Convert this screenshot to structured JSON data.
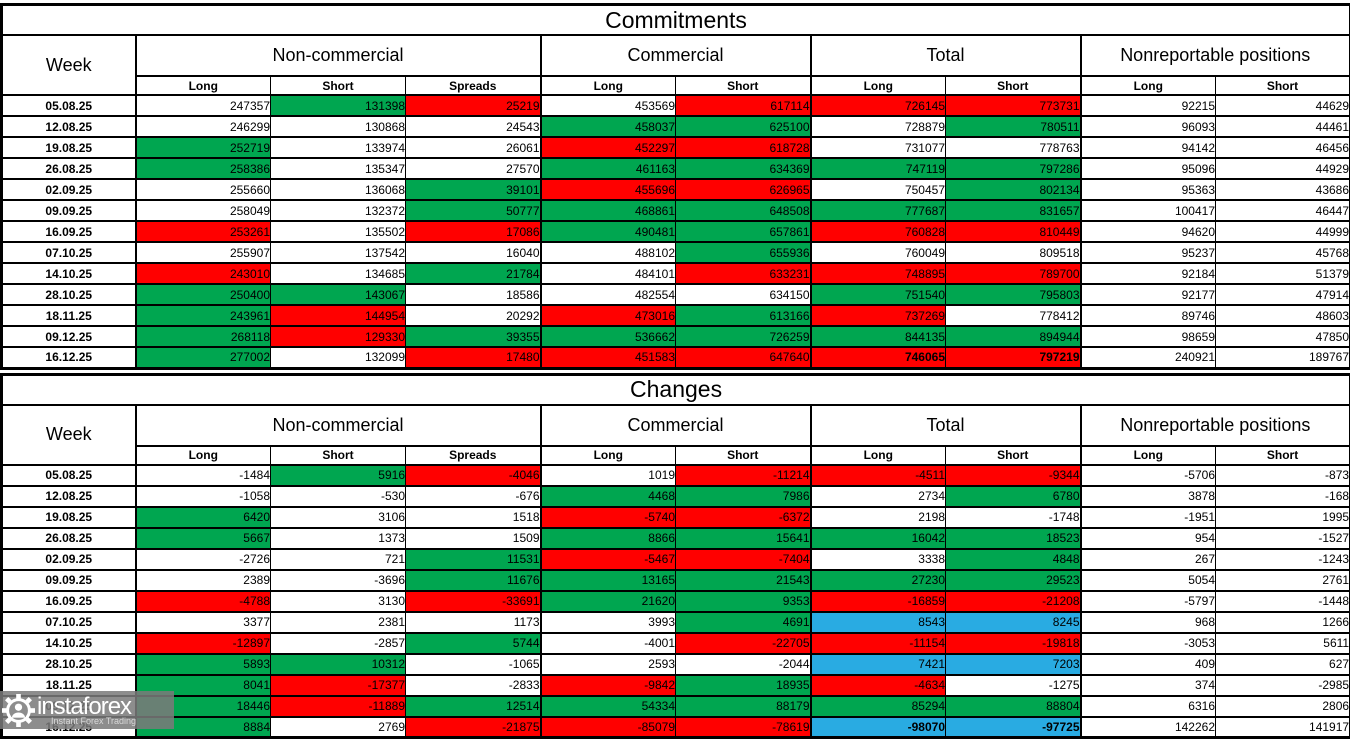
{
  "colors": {
    "increase_green": "#00A650",
    "decrease_red": "#FF0000",
    "extreme_blue": "#29ABE2",
    "neutral_white": "#FFFFFF",
    "border_black": "#000000",
    "watermark_gray": "#7A7A7A"
  },
  "columns": {
    "week": "Week",
    "groups": [
      {
        "label": "Non-commercial",
        "cols": [
          "Long",
          "Short",
          "Spreads"
        ]
      },
      {
        "label": "Commercial",
        "cols": [
          "Long",
          "Short"
        ]
      },
      {
        "label": "Total",
        "cols": [
          "Long",
          "Short"
        ]
      },
      {
        "label": "Nonreportable positions",
        "cols": [
          "Long",
          "Short"
        ]
      }
    ]
  },
  "chart_data": [
    {
      "type": "table",
      "title": "Commitments",
      "rows": [
        {
          "week": "05.08.25",
          "values": [
            247357,
            131398,
            25219,
            453569,
            617114,
            726145,
            773731,
            92215,
            44629
          ],
          "colors": "wgrwrrrww"
        },
        {
          "week": "12.08.25",
          "values": [
            246299,
            130868,
            24543,
            458037,
            625100,
            728879,
            780511,
            96093,
            44461
          ],
          "colors": "wwwggwgww"
        },
        {
          "week": "19.08.25",
          "values": [
            252719,
            133974,
            26061,
            452297,
            618728,
            731077,
            778763,
            94142,
            46456
          ],
          "colors": "gwwrrwwww"
        },
        {
          "week": "26.08.25",
          "values": [
            258386,
            135347,
            27570,
            461163,
            634369,
            747119,
            797286,
            95096,
            44929
          ],
          "colors": "gwwggggww"
        },
        {
          "week": "02.09.25",
          "values": [
            255660,
            136068,
            39101,
            455696,
            626965,
            750457,
            802134,
            95363,
            43686
          ],
          "colors": "wwgrrwgww"
        },
        {
          "week": "09.09.25",
          "values": [
            258049,
            132372,
            50777,
            468861,
            648508,
            777687,
            831657,
            100417,
            46447
          ],
          "colors": "wwgggggww"
        },
        {
          "week": "16.09.25",
          "values": [
            253261,
            135502,
            17086,
            490481,
            657861,
            760828,
            810449,
            94620,
            44999
          ],
          "colors": "rwrggrrww"
        },
        {
          "week": "07.10.25",
          "values": [
            255907,
            137542,
            16040,
            488102,
            655936,
            760049,
            809518,
            95237,
            45768
          ],
          "colors": "wwwwgwwww"
        },
        {
          "week": "14.10.25",
          "values": [
            243010,
            134685,
            21784,
            484101,
            633231,
            748895,
            789700,
            92184,
            51379
          ],
          "colors": "rwgwrrrww"
        },
        {
          "week": "28.10.25",
          "values": [
            250400,
            143067,
            18586,
            482554,
            634150,
            751540,
            795803,
            92177,
            47914
          ],
          "colors": "ggwwwggww"
        },
        {
          "week": "18.11.25",
          "values": [
            243961,
            144954,
            20292,
            473016,
            613166,
            737269,
            778412,
            89746,
            48603
          ],
          "colors": "grwrgrwww"
        },
        {
          "week": "09.12.25",
          "values": [
            268118,
            129330,
            39355,
            536662,
            726259,
            844135,
            894944,
            98659,
            47850
          ],
          "colors": "grgggggww"
        },
        {
          "week": "16.12.25",
          "values": [
            277002,
            132099,
            17480,
            451583,
            647640,
            746065,
            797219,
            240921,
            189767
          ],
          "colors": "gwrrrRRww"
        }
      ]
    },
    {
      "type": "table",
      "title": "Changes",
      "rows": [
        {
          "week": "05.08.25",
          "values": [
            -1484,
            5916,
            -4046,
            1019,
            -11214,
            -4511,
            -9344,
            -5706,
            -873
          ],
          "colors": "wgrwrrrww"
        },
        {
          "week": "12.08.25",
          "values": [
            -1058,
            -530,
            -676,
            4468,
            7986,
            2734,
            6780,
            3878,
            -168
          ],
          "colors": "wwwggwgww"
        },
        {
          "week": "19.08.25",
          "values": [
            6420,
            3106,
            1518,
            -5740,
            -6372,
            2198,
            -1748,
            -1951,
            1995
          ],
          "colors": "gwwrrwwww"
        },
        {
          "week": "26.08.25",
          "values": [
            5667,
            1373,
            1509,
            8866,
            15641,
            16042,
            18523,
            954,
            -1527
          ],
          "colors": "gwwggggww"
        },
        {
          "week": "02.09.25",
          "values": [
            -2726,
            721,
            11531,
            -5467,
            -7404,
            3338,
            4848,
            267,
            -1243
          ],
          "colors": "wwgrrwgww"
        },
        {
          "week": "09.09.25",
          "values": [
            2389,
            -3696,
            11676,
            13165,
            21543,
            27230,
            29523,
            5054,
            2761
          ],
          "colors": "wwgggggww"
        },
        {
          "week": "16.09.25",
          "values": [
            -4788,
            3130,
            -33691,
            21620,
            9353,
            -16859,
            -21208,
            -5797,
            -1448
          ],
          "colors": "rwrggrrww"
        },
        {
          "week": "07.10.25",
          "values": [
            3377,
            2381,
            1173,
            3993,
            4691,
            8543,
            8245,
            968,
            1266
          ],
          "colors": "wwwwgbbww"
        },
        {
          "week": "14.10.25",
          "values": [
            -12897,
            -2857,
            5744,
            -4001,
            -22705,
            -11154,
            -19818,
            -3053,
            5611
          ],
          "colors": "rwgwrrrww"
        },
        {
          "week": "28.10.25",
          "values": [
            5893,
            10312,
            -1065,
            2593,
            -2044,
            7421,
            7203,
            409,
            627
          ],
          "colors": "ggwwwbbww"
        },
        {
          "week": "18.11.25",
          "values": [
            8041,
            -17377,
            -2833,
            -9842,
            18935,
            -4634,
            -1275,
            374,
            -2985
          ],
          "colors": "grwrgrwww"
        },
        {
          "week": "09.12.25",
          "values": [
            18446,
            -11889,
            12514,
            54334,
            88179,
            85294,
            88804,
            6316,
            2806
          ],
          "colors": "grgggggww"
        },
        {
          "week": "16.12.25",
          "values": [
            8884,
            2769,
            -21875,
            -85079,
            -78619,
            -98070,
            -97725,
            142262,
            141917
          ],
          "colors": "gwrrrBBww"
        }
      ]
    }
  ],
  "watermark": {
    "brand": "instaforex",
    "tagline": "Instant Forex Trading"
  }
}
